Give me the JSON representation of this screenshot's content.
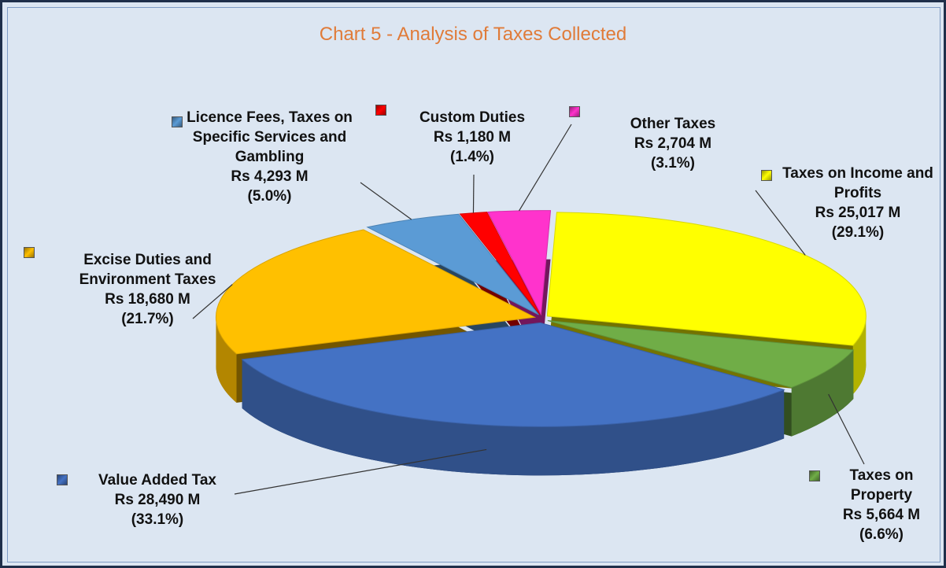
{
  "chart_data": {
    "type": "pie",
    "title": "Chart 5 - Analysis of Taxes Collected",
    "categories": [
      "Taxes on Income and Profits",
      "Taxes on Property",
      "Value Added Tax",
      "Excise Duties and Environment Taxes",
      "Licence Fees, Taxes on Specific Services and Gambling",
      "Custom Duties",
      "Other Taxes"
    ],
    "values": [
      25017,
      5664,
      28490,
      18680,
      4293,
      1180,
      2704
    ],
    "value_labels": [
      "Rs 25,017 M",
      "Rs 5,664 M",
      "Rs 28,490 M",
      "Rs 18,680 M",
      "Rs 4,293 M",
      "Rs 1,180 M",
      "Rs 2,704 M"
    ],
    "percentages": [
      29.1,
      6.6,
      33.1,
      21.7,
      5.0,
      1.4,
      3.1
    ],
    "percentage_labels": [
      "(29.1%)",
      "(6.6%)",
      "(33.1%)",
      "(21.7%)",
      "(5.0%)",
      "(1.4%)",
      "(3.1%)"
    ],
    "colors": [
      "#ffff00",
      "#70ad47",
      "#4472c4",
      "#ffc000",
      "#5b9bd5",
      "#ff0000",
      "#ff33cc"
    ]
  }
}
